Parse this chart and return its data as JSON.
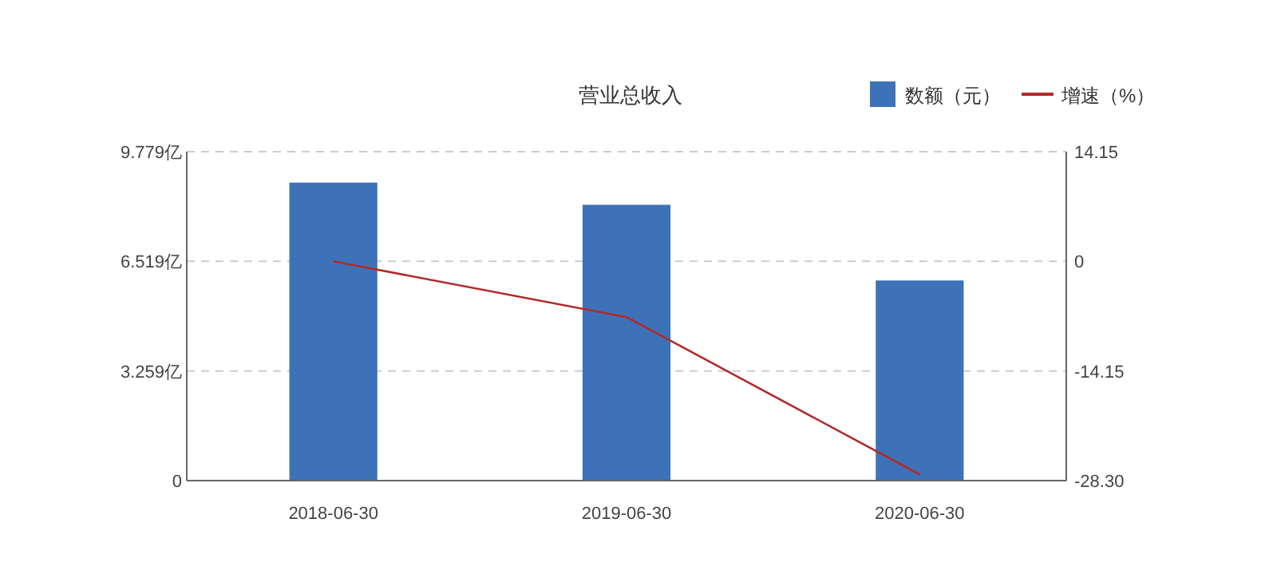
{
  "chart_data": {
    "type": "bar",
    "title": "营业总收入",
    "categories": [
      "2018-06-30",
      "2019-06-30",
      "2020-06-30"
    ],
    "series": [
      {
        "name": "数额（元）",
        "color": "#3d72b8",
        "values": [
          8.86,
          8.2,
          5.95
        ]
      },
      {
        "name": "增速（%）",
        "type": "line",
        "axis": "y2",
        "color": "#b22a2a",
        "values": [
          0,
          -7.2,
          -27.5
        ]
      }
    ],
    "ylim": [
      0,
      9.779
    ],
    "yticks": [
      {
        "value": 0,
        "label": "0"
      },
      {
        "value": 3.259,
        "label": "3.259亿"
      },
      {
        "value": 6.519,
        "label": "6.519亿"
      },
      {
        "value": 9.779,
        "label": "9.779亿"
      }
    ],
    "y2lim": [
      -28.3,
      14.15
    ],
    "y2ticks": [
      {
        "value": -28.3,
        "label": "-28.30"
      },
      -14.15,
      0,
      14.15
    ],
    "grid": "y",
    "legend": "top right",
    "marker": "none",
    "line_style": "solid"
  }
}
